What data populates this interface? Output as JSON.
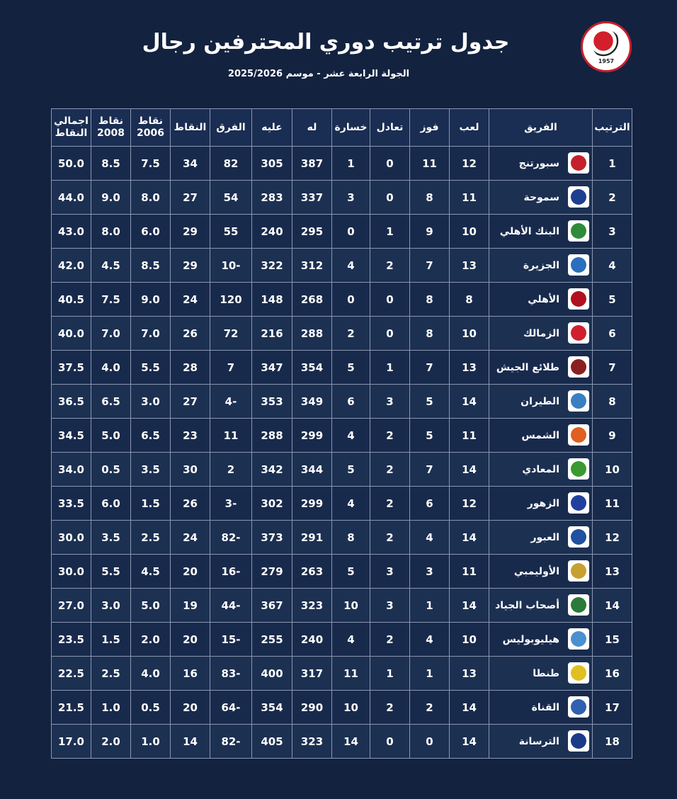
{
  "header": {
    "title": "جدول ترتيب دوري المحترفين رجال",
    "subtitle": "الجولة الرابعة عشر - موسم 2025/2026",
    "logo_text": "1957"
  },
  "columns": {
    "total": "اجمالي النقاط",
    "pts2008": "نقاط 2008",
    "pts2006": "نقاط 2006",
    "points": "النقاط",
    "diff": "الفرق",
    "against": "عليه",
    "for": "له",
    "loss": "خسارة",
    "draw": "تعادل",
    "win": "فوز",
    "played": "لعب",
    "team": "الفريق",
    "rank": "الترتيب"
  },
  "rows": [
    {
      "rank": "1",
      "team": "سبورتنج",
      "played": "12",
      "win": "11",
      "draw": "0",
      "loss": "1",
      "for": "387",
      "against": "305",
      "diff": "82",
      "points": "34",
      "pts2006": "7.5",
      "pts2008": "8.5",
      "total": "50.0",
      "color": "#c4202c"
    },
    {
      "rank": "2",
      "team": "سموحة",
      "played": "11",
      "win": "8",
      "draw": "0",
      "loss": "3",
      "for": "337",
      "against": "283",
      "diff": "54",
      "points": "27",
      "pts2006": "8.0",
      "pts2008": "9.0",
      "total": "44.0",
      "color": "#1d3f8f"
    },
    {
      "rank": "3",
      "team": "البنك الأهلي",
      "played": "10",
      "win": "9",
      "draw": "1",
      "loss": "0",
      "for": "295",
      "against": "240",
      "diff": "55",
      "points": "29",
      "pts2006": "6.0",
      "pts2008": "8.0",
      "total": "43.0",
      "color": "#2e8b3a"
    },
    {
      "rank": "4",
      "team": "الجزيرة",
      "played": "13",
      "win": "7",
      "draw": "2",
      "loss": "4",
      "for": "312",
      "against": "322",
      "diff": "10-",
      "points": "29",
      "pts2006": "8.5",
      "pts2008": "4.5",
      "total": "42.0",
      "color": "#2a6fbf"
    },
    {
      "rank": "5",
      "team": "الأهلي",
      "played": "8",
      "win": "8",
      "draw": "0",
      "loss": "0",
      "for": "268",
      "against": "148",
      "diff": "120",
      "points": "24",
      "pts2006": "9.0",
      "pts2008": "7.5",
      "total": "40.5",
      "color": "#b01020"
    },
    {
      "rank": "6",
      "team": "الزمالك",
      "played": "10",
      "win": "8",
      "draw": "0",
      "loss": "2",
      "for": "288",
      "against": "216",
      "diff": "72",
      "points": "26",
      "pts2006": "7.0",
      "pts2008": "7.0",
      "total": "40.0",
      "color": "#d02030"
    },
    {
      "rank": "7",
      "team": "طلائع الجيش",
      "played": "13",
      "win": "7",
      "draw": "1",
      "loss": "5",
      "for": "354",
      "against": "347",
      "diff": "7",
      "points": "28",
      "pts2006": "5.5",
      "pts2008": "4.0",
      "total": "37.5",
      "color": "#8a2020"
    },
    {
      "rank": "8",
      "team": "الطيران",
      "played": "14",
      "win": "5",
      "draw": "3",
      "loss": "6",
      "for": "349",
      "against": "353",
      "diff": "4-",
      "points": "27",
      "pts2006": "3.0",
      "pts2008": "6.5",
      "total": "36.5",
      "color": "#3a7fc0"
    },
    {
      "rank": "9",
      "team": "الشمس",
      "played": "11",
      "win": "5",
      "draw": "2",
      "loss": "4",
      "for": "299",
      "against": "288",
      "diff": "11",
      "points": "23",
      "pts2006": "6.5",
      "pts2008": "5.0",
      "total": "34.5",
      "color": "#e06020"
    },
    {
      "rank": "10",
      "team": "المعادي",
      "played": "14",
      "win": "7",
      "draw": "2",
      "loss": "5",
      "for": "344",
      "against": "342",
      "diff": "2",
      "points": "30",
      "pts2006": "3.5",
      "pts2008": "0.5",
      "total": "34.0",
      "color": "#3a9a30"
    },
    {
      "rank": "11",
      "team": "الزهور",
      "played": "12",
      "win": "6",
      "draw": "2",
      "loss": "4",
      "for": "299",
      "against": "302",
      "diff": "3-",
      "points": "26",
      "pts2006": "1.5",
      "pts2008": "6.0",
      "total": "33.5",
      "color": "#2040a0"
    },
    {
      "rank": "12",
      "team": "العبور",
      "played": "14",
      "win": "4",
      "draw": "2",
      "loss": "8",
      "for": "291",
      "against": "373",
      "diff": "82-",
      "points": "24",
      "pts2006": "2.5",
      "pts2008": "3.5",
      "total": "30.0",
      "color": "#2050a0"
    },
    {
      "rank": "13",
      "team": "الأوليمبي",
      "played": "11",
      "win": "3",
      "draw": "3",
      "loss": "5",
      "for": "263",
      "against": "279",
      "diff": "16-",
      "points": "20",
      "pts2006": "4.5",
      "pts2008": "5.5",
      "total": "30.0",
      "color": "#c8a030"
    },
    {
      "rank": "14",
      "team": "أصحاب الجياد",
      "played": "14",
      "win": "1",
      "draw": "3",
      "loss": "10",
      "for": "323",
      "against": "367",
      "diff": "44-",
      "points": "19",
      "pts2006": "5.0",
      "pts2008": "3.0",
      "total": "27.0",
      "color": "#2a7a3a"
    },
    {
      "rank": "15",
      "team": "هيليوبوليس",
      "played": "10",
      "win": "4",
      "draw": "2",
      "loss": "4",
      "for": "240",
      "against": "255",
      "diff": "15-",
      "points": "20",
      "pts2006": "2.0",
      "pts2008": "1.5",
      "total": "23.5",
      "color": "#4a90d0"
    },
    {
      "rank": "16",
      "team": "طنطا",
      "played": "13",
      "win": "1",
      "draw": "1",
      "loss": "11",
      "for": "317",
      "against": "400",
      "diff": "83-",
      "points": "16",
      "pts2006": "4.0",
      "pts2008": "2.5",
      "total": "22.5",
      "color": "#e0c020"
    },
    {
      "rank": "17",
      "team": "القناة",
      "played": "14",
      "win": "2",
      "draw": "2",
      "loss": "10",
      "for": "290",
      "against": "354",
      "diff": "64-",
      "points": "20",
      "pts2006": "0.5",
      "pts2008": "1.0",
      "total": "21.5",
      "color": "#3060b0"
    },
    {
      "rank": "18",
      "team": "الترسانة",
      "played": "14",
      "win": "0",
      "draw": "0",
      "loss": "14",
      "for": "323",
      "against": "405",
      "diff": "82-",
      "points": "14",
      "pts2006": "1.0",
      "pts2008": "2.0",
      "total": "17.0",
      "color": "#1a3a8a"
    }
  ]
}
